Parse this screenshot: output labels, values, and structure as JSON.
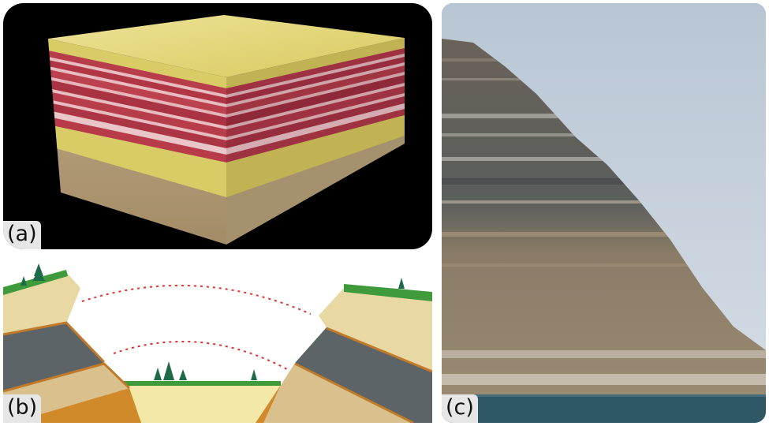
{
  "panels": [
    {
      "id": "a",
      "label": "(a)"
    },
    {
      "id": "b",
      "label": "(b)"
    },
    {
      "id": "c",
      "label": "(c)"
    }
  ],
  "colors": {
    "background": "#000000",
    "sand_yellow": "#e2d46a",
    "red_layer": "#c0404e",
    "pink_layer": "#f2c4c8",
    "rock_tan": "#c8b48c",
    "grass_green": "#3e9a3a",
    "gray_layer": "#5c6468",
    "orange_layer": "#d08a2a",
    "arc_red": "#e03030",
    "sky": "#c8d4e0",
    "water": "#2f5866"
  }
}
